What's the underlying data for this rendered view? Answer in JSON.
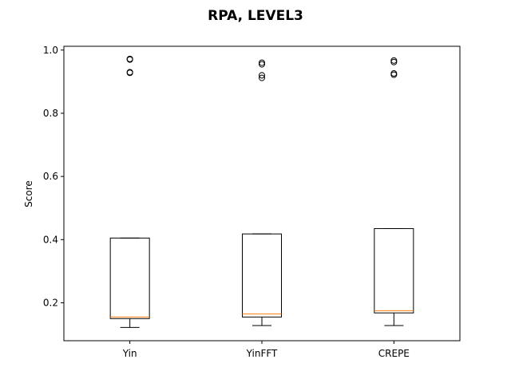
{
  "chart_data": {
    "type": "box",
    "title": "RPA, LEVEL3",
    "xlabel": "",
    "ylabel": "Score",
    "ylim": [
      0.08,
      1.012
    ],
    "yticks": [
      0.2,
      0.4,
      0.6,
      0.8,
      1.0
    ],
    "ytick_labels": [
      "0.2",
      "0.4",
      "0.6",
      "0.8",
      "1.0"
    ],
    "grid": false,
    "colors": {
      "box": "#000000",
      "median": "#ff7f0e",
      "background": "#ffffff"
    },
    "categories": [
      "Yin",
      "YinFFT",
      "CREPE"
    ],
    "boxes": [
      {
        "name": "Yin",
        "whisker_low": 0.122,
        "q1": 0.15,
        "median": 0.155,
        "q3": 0.405,
        "whisker_high": 0.405,
        "outliers": [
          0.928,
          0.93,
          0.97,
          0.972
        ]
      },
      {
        "name": "YinFFT",
        "whisker_low": 0.128,
        "q1": 0.155,
        "median": 0.165,
        "q3": 0.418,
        "whisker_high": 0.418,
        "outliers": [
          0.912,
          0.92,
          0.955,
          0.96
        ]
      },
      {
        "name": "CREPE",
        "whisker_low": 0.128,
        "q1": 0.168,
        "median": 0.175,
        "q3": 0.435,
        "whisker_high": 0.435,
        "outliers": [
          0.922,
          0.926,
          0.962,
          0.967
        ]
      }
    ]
  }
}
